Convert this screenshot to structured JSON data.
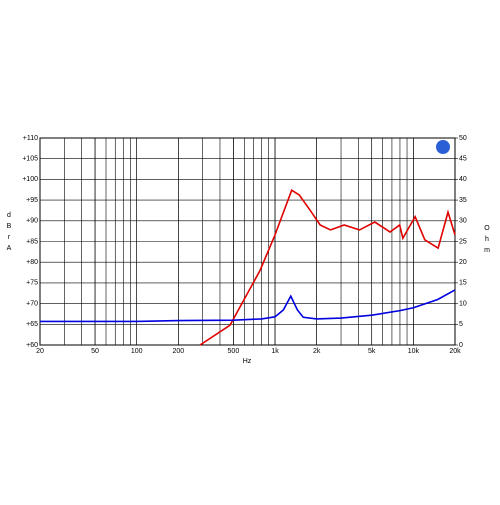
{
  "chart_data": {
    "type": "line",
    "x_label": "Hz",
    "y_label": "dBrA",
    "y2_label": "Ohm",
    "xlog": true,
    "grid": true,
    "xlim": [
      20,
      20000
    ],
    "xticks": [
      20,
      50,
      100,
      200,
      500,
      {
        "value": 1000,
        "label": "1k"
      },
      {
        "value": 2000,
        "label": "2k"
      },
      {
        "value": 5000,
        "label": "5k"
      },
      {
        "value": 10000,
        "label": "10k"
      },
      {
        "value": 20000,
        "label": "20k"
      }
    ],
    "ylim": [
      60,
      110
    ],
    "yticks": [
      {
        "value": 60,
        "label": "+60"
      },
      {
        "value": 65,
        "label": "+65"
      },
      {
        "value": 70,
        "label": "+70"
      },
      {
        "value": 75,
        "label": "+75"
      },
      {
        "value": 80,
        "label": "+80"
      },
      {
        "value": 85,
        "label": "+85"
      },
      {
        "value": 90,
        "label": "+90"
      },
      {
        "value": 95,
        "label": "+95"
      },
      {
        "value": 100,
        "label": "+100"
      },
      {
        "value": 105,
        "label": "+105"
      },
      {
        "value": 110,
        "label": "+110"
      }
    ],
    "y2lim": [
      0,
      50
    ],
    "y2ticks": [
      0,
      5,
      10,
      15,
      20,
      25,
      30,
      35,
      40,
      45,
      50
    ],
    "series": [
      {
        "color": "#e00000",
        "x": [
          287,
          473,
          779,
          1000,
          1320,
          1500,
          1790,
          2120,
          2520,
          3160,
          4080,
          5260,
          6780,
          7960,
          8400,
          10300,
          12100,
          15100,
          17800,
          20000
        ],
        "values": [
          60,
          64.8,
          78,
          86.6,
          97.4,
          96.2,
          92.6,
          89,
          87.8,
          89,
          87.8,
          89.7,
          87.3,
          89,
          85.8,
          91,
          85.4,
          83.4,
          92.1,
          86.6
        ]
      },
      {
        "color": "#0000e0",
        "axis": "y2",
        "x": [
          20,
          100,
          200,
          500,
          800,
          1000,
          1150,
          1300,
          1450,
          1600,
          2000,
          3000,
          5000,
          8000,
          10000,
          15000,
          20000
        ],
        "values": [
          5.7,
          5.7,
          5.9,
          6.0,
          6.3,
          6.8,
          8.5,
          11.8,
          8.5,
          6.7,
          6.3,
          6.5,
          7.2,
          8.3,
          9.0,
          11.0,
          13.3
        ]
      }
    ]
  }
}
